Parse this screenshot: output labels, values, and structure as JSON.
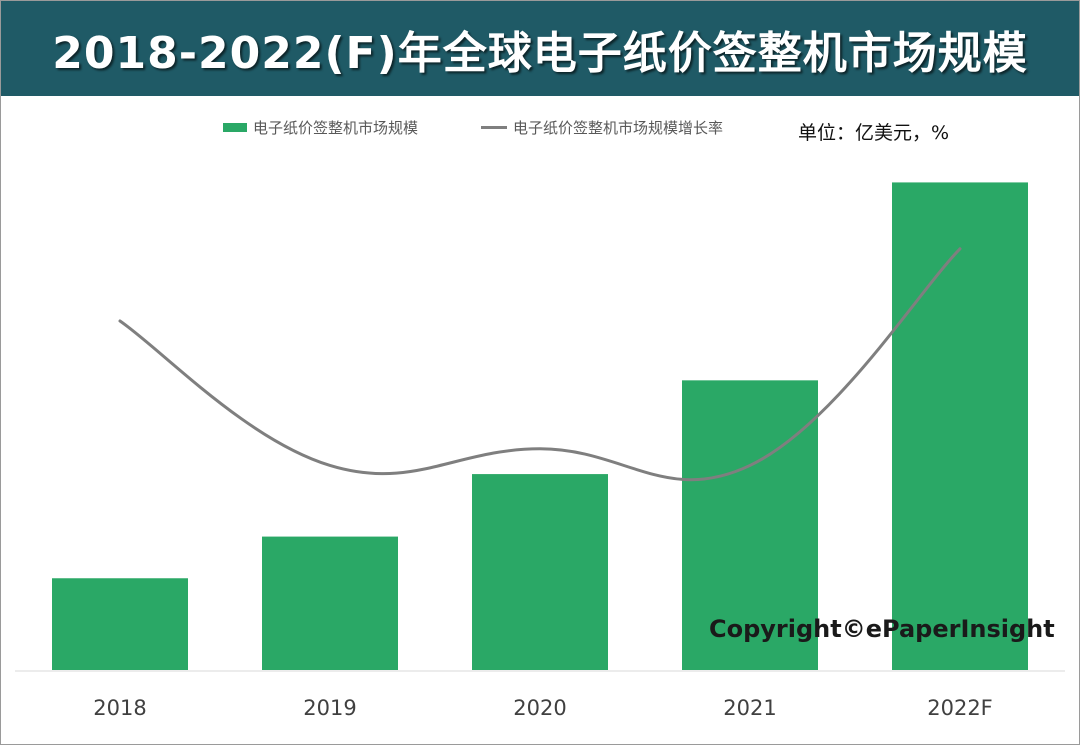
{
  "header": {
    "title": "2018-2022(F)年全球电子纸价签整机市场规模"
  },
  "legend": {
    "bar_label": "电子纸价签整机市场规模",
    "line_label": "电子纸价签整机市场规模增长率"
  },
  "unit_label": "单位：亿美元，%",
  "copyright": "Copyright©ePaperInsight",
  "colors": {
    "header_bg": "#1f5a66",
    "bar": "#2aa866",
    "line": "#7f7f7f",
    "axis": "#d9d9d9"
  },
  "chart_data": {
    "type": "bar",
    "categories": [
      "2018",
      "2019",
      "2020",
      "2021",
      "2022F"
    ],
    "series": [
      {
        "name": "电子纸价签整机市场规模",
        "type": "bar",
        "values": [
          9,
          13,
          19,
          28,
          47
        ],
        "axis": "left"
      },
      {
        "name": "电子纸价签整机市场规模增长率",
        "type": "line",
        "smooth": true,
        "values": [
          63,
          37,
          40,
          37,
          76
        ],
        "axis": "right"
      }
    ],
    "title": "2018-2022(F)年全球电子纸价签整机市场规模",
    "xlabel": "",
    "ylabel": "",
    "ylim": [
      0,
      48
    ],
    "y2lim": [
      0,
      90
    ],
    "grid": false,
    "legend_position": "top",
    "unit": "单位：亿美元，%"
  }
}
